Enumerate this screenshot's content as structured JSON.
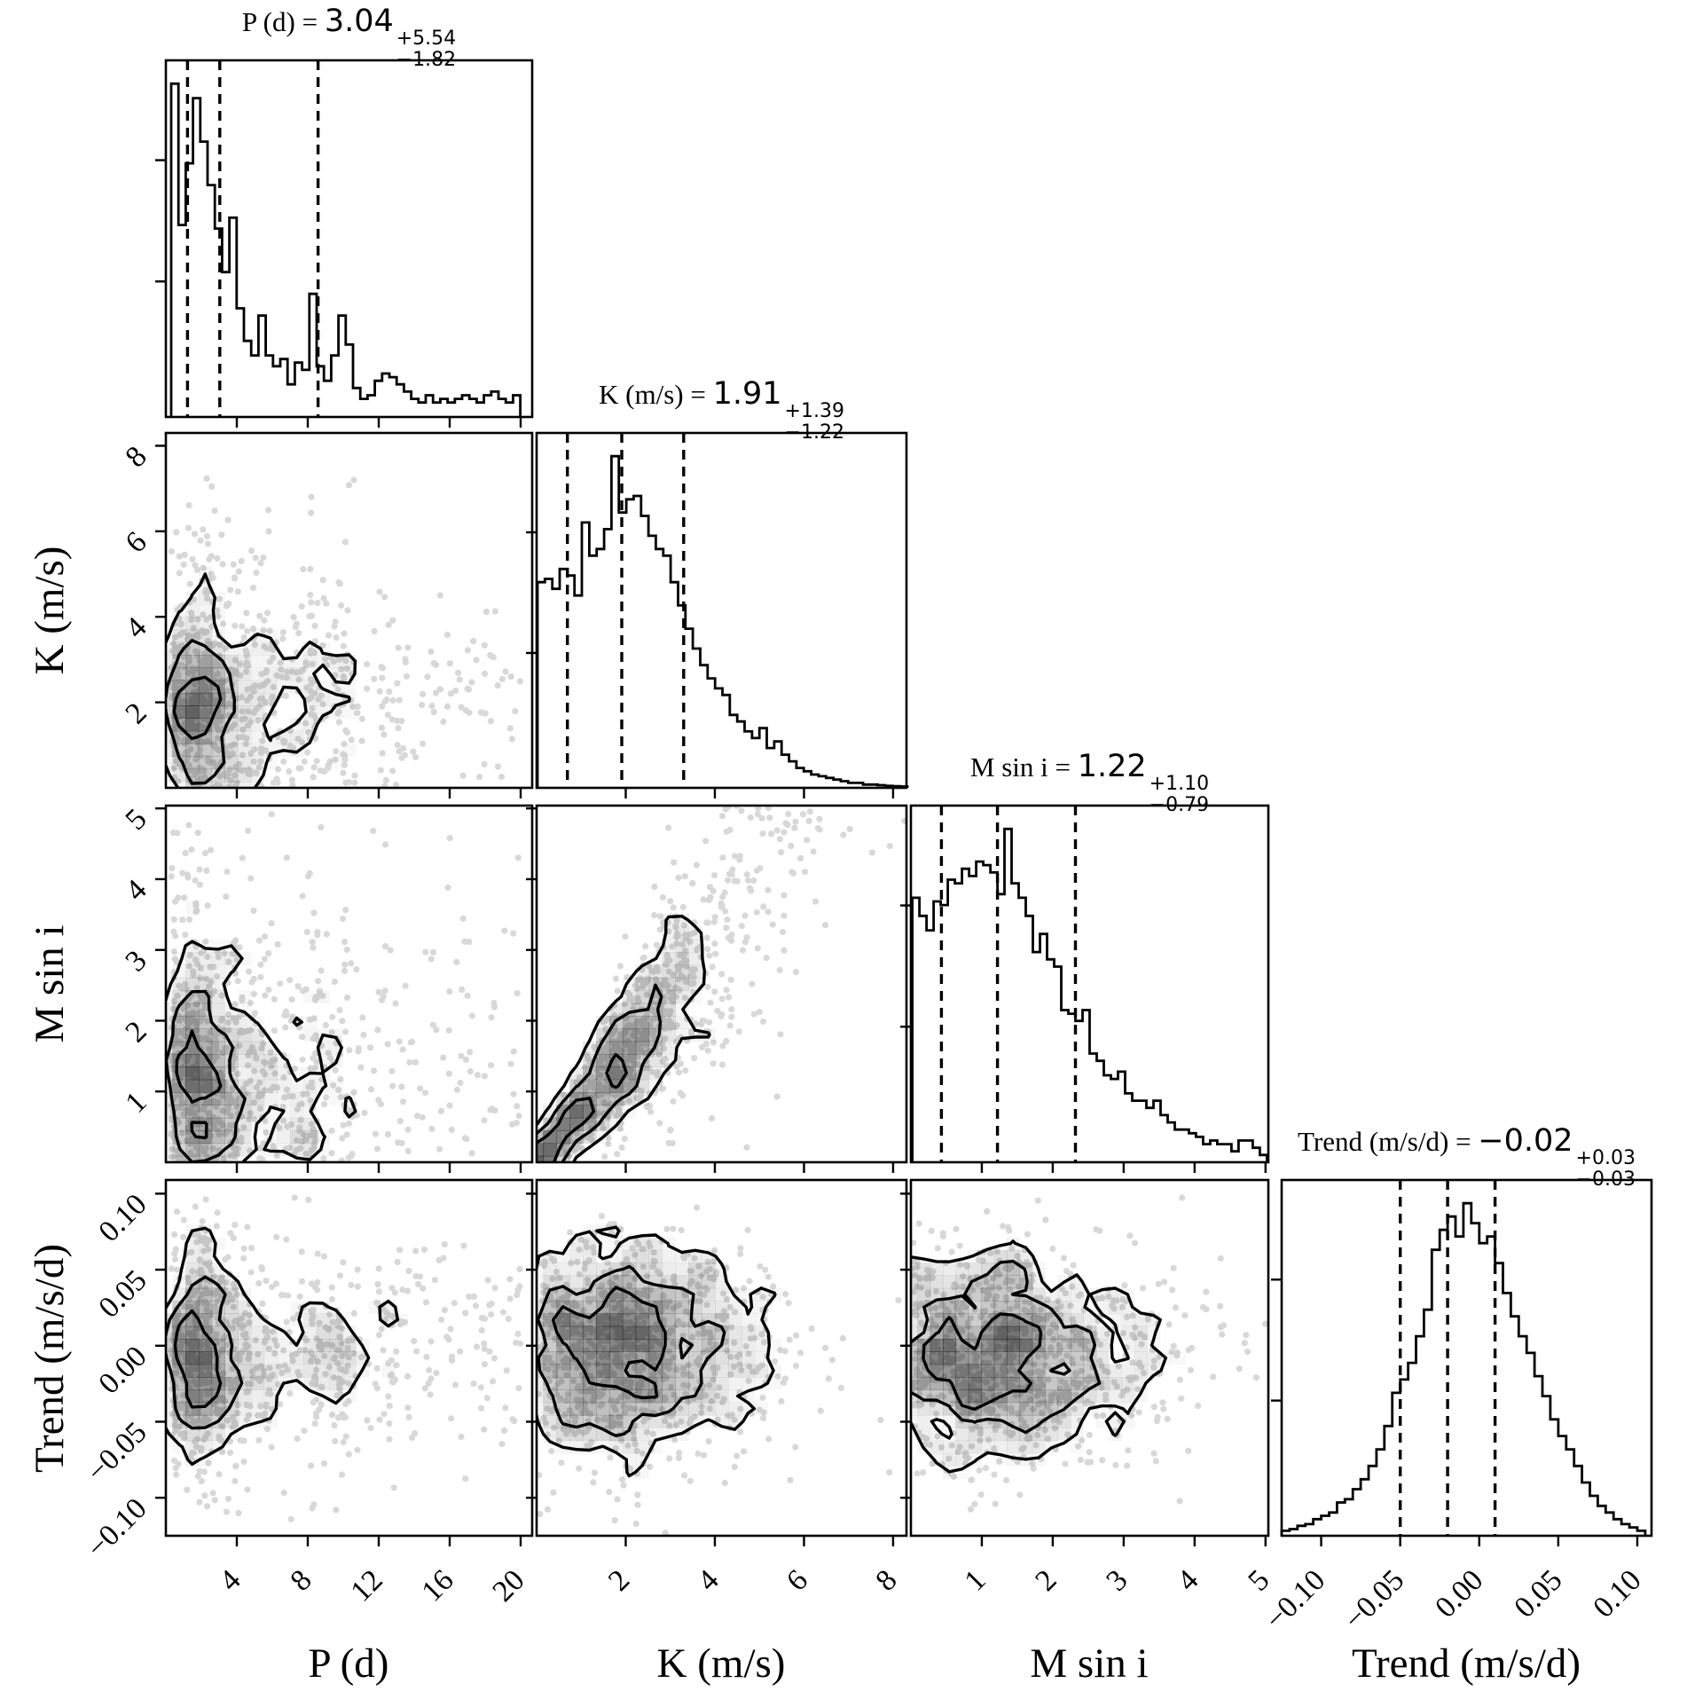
{
  "figure": {
    "kind": "corner plot (posterior distributions with 2D contours)",
    "background": "#ffffff"
  },
  "style": {
    "line_color": "#000000",
    "dash_color": "#000000",
    "contour_color": "#000000",
    "scatter_color": "#bfbfbf",
    "shade_color": "#000000"
  },
  "chart_data": {
    "type": "corner",
    "parameters": [
      {
        "id": "P",
        "label": "P (d)",
        "title": {
          "prefix": "P (d) = ",
          "value": "3.04",
          "plus": "+5.54",
          "minus": "−1.82"
        },
        "median": 3.04,
        "err_plus": 5.54,
        "err_minus": 1.82,
        "quantiles": [
          1.22,
          3.04,
          8.58
        ],
        "range": [
          0,
          20.65
        ],
        "ticks": [
          4,
          8,
          12,
          16,
          20
        ],
        "tick_labels": [
          "4",
          "8",
          "12",
          "16",
          "20"
        ],
        "hist": {
          "bin_start": 0.3,
          "bin_width": 0.41,
          "heights": [
            0.92,
            0.53,
            0.7,
            0.88,
            0.76,
            0.64,
            0.52,
            0.4,
            0.55,
            0.3,
            0.21,
            0.17,
            0.28,
            0.17,
            0.14,
            0.16,
            0.09,
            0.15,
            0.13,
            0.34,
            0.14,
            0.1,
            0.17,
            0.28,
            0.2,
            0.08,
            0.05,
            0.06,
            0.1,
            0.12,
            0.11,
            0.09,
            0.07,
            0.05,
            0.04,
            0.06,
            0.04,
            0.05,
            0.04,
            0.05,
            0.06,
            0.05,
            0.04,
            0.06,
            0.07,
            0.05,
            0.04,
            0.06
          ]
        }
      },
      {
        "id": "K",
        "label": "K (m/s)",
        "title": {
          "prefix": "K (m/s) = ",
          "value": "1.91",
          "plus": "+1.39",
          "minus": "−1.22"
        },
        "median": 1.91,
        "err_plus": 1.39,
        "err_minus": 1.22,
        "quantiles": [
          0.69,
          1.91,
          3.3
        ],
        "range": [
          0,
          8.3
        ],
        "ticks": [
          2,
          4,
          6,
          8
        ],
        "tick_labels": [
          "2",
          "4",
          "6",
          "8"
        ],
        "hist": {
          "bin_start": 0.02,
          "bin_width": 0.166,
          "heights": [
            0.62,
            0.63,
            0.6,
            0.66,
            0.64,
            0.58,
            0.8,
            0.7,
            0.72,
            0.78,
            1.0,
            0.83,
            0.87,
            0.88,
            0.82,
            0.76,
            0.72,
            0.7,
            0.62,
            0.55,
            0.48,
            0.42,
            0.37,
            0.33,
            0.3,
            0.28,
            0.22,
            0.2,
            0.17,
            0.15,
            0.18,
            0.12,
            0.14,
            0.1,
            0.08,
            0.06,
            0.05,
            0.04,
            0.035,
            0.03,
            0.025,
            0.02,
            0.015,
            0.015,
            0.01,
            0.01,
            0.008,
            0.006,
            0.005,
            0.004
          ]
        }
      },
      {
        "id": "Msini",
        "label": "M sin i",
        "title": {
          "prefix": "M sin i = ",
          "value": "1.22",
          "plus": "+1.10",
          "minus": "−0.79"
        },
        "median": 1.22,
        "err_plus": 1.1,
        "err_minus": 0.79,
        "quantiles": [
          0.43,
          1.22,
          2.32
        ],
        "range": [
          0,
          5.04
        ],
        "ticks": [
          1,
          2,
          3,
          4,
          5
        ],
        "tick_labels": [
          "1",
          "2",
          "3",
          "4",
          "5"
        ],
        "hist": {
          "bin_start": 0.02,
          "bin_width": 0.1,
          "heights": [
            0.73,
            0.68,
            0.64,
            0.72,
            0.71,
            0.78,
            0.77,
            0.81,
            0.79,
            0.83,
            0.82,
            0.8,
            0.74,
            0.92,
            0.77,
            0.73,
            0.68,
            0.58,
            0.63,
            0.56,
            0.54,
            0.42,
            0.41,
            0.39,
            0.42,
            0.3,
            0.28,
            0.24,
            0.23,
            0.25,
            0.19,
            0.17,
            0.17,
            0.15,
            0.17,
            0.13,
            0.11,
            0.09,
            0.09,
            0.08,
            0.07,
            0.05,
            0.06,
            0.05,
            0.05,
            0.03,
            0.06,
            0.06,
            0.04,
            0.02
          ]
        }
      },
      {
        "id": "Trend",
        "label": "Trend (m/s/d)",
        "title": {
          "prefix": "Trend (m/s/d) = ",
          "value": "−0.02",
          "plus": "+0.03",
          "minus": "−0.03"
        },
        "median": -0.02,
        "err_plus": 0.03,
        "err_minus": 0.03,
        "quantiles": [
          -0.05,
          -0.02,
          0.01
        ],
        "range": [
          -0.125,
          0.109
        ],
        "ticks": [
          -0.1,
          -0.05,
          0.0,
          0.05,
          0.1
        ],
        "tick_labels": [
          "−0.10",
          "−0.05",
          "0.00",
          "0.05",
          "0.10"
        ],
        "hist": {
          "bin_start": -0.125,
          "bin_width": 0.005,
          "heights": [
            0.015,
            0.02,
            0.03,
            0.035,
            0.05,
            0.06,
            0.07,
            0.1,
            0.11,
            0.14,
            0.17,
            0.21,
            0.26,
            0.33,
            0.43,
            0.47,
            0.52,
            0.6,
            0.68,
            0.86,
            0.92,
            0.96,
            0.9,
            1.0,
            0.94,
            0.88,
            0.9,
            0.82,
            0.73,
            0.66,
            0.6,
            0.55,
            0.48,
            0.42,
            0.35,
            0.3,
            0.26,
            0.21,
            0.16,
            0.12,
            0.09,
            0.07,
            0.05,
            0.035,
            0.025,
            0.015
          ]
        }
      }
    ],
    "panels": [
      {
        "x": 0,
        "y": 1,
        "seed": 101,
        "n": 850,
        "levels": [
          0.16,
          0.38,
          0.65
        ]
      },
      {
        "x": 0,
        "y": 2,
        "seed": 202,
        "n": 850,
        "levels": [
          0.16,
          0.38,
          0.65
        ]
      },
      {
        "x": 1,
        "y": 2,
        "seed": 303,
        "n": 900,
        "levels": [
          0.16,
          0.4,
          0.68
        ],
        "relation": {
          "type": "funnel",
          "slope": 0.78,
          "spread": 0.33,
          "noise": 0.12
        }
      },
      {
        "x": 0,
        "y": 3,
        "seed": 404,
        "n": 850,
        "levels": [
          0.16,
          0.38,
          0.65
        ]
      },
      {
        "x": 1,
        "y": 3,
        "seed": 505,
        "n": 900,
        "levels": [
          0.16,
          0.38,
          0.65
        ]
      },
      {
        "x": 2,
        "y": 3,
        "seed": 606,
        "n": 900,
        "levels": [
          0.16,
          0.38,
          0.65
        ]
      }
    ]
  }
}
